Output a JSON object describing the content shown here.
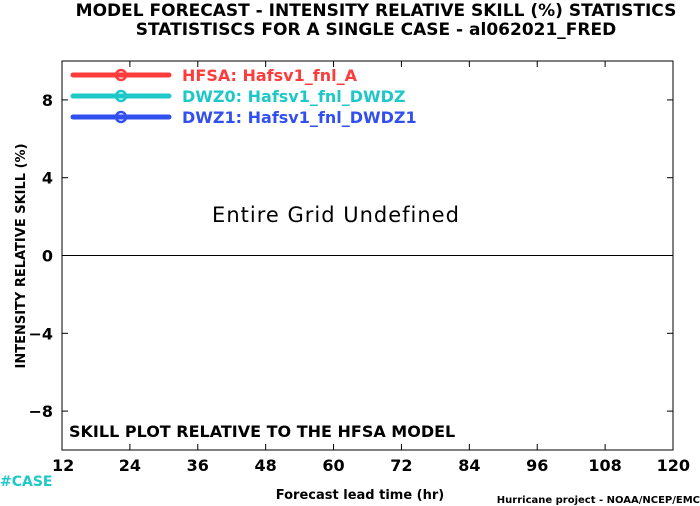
{
  "chart_data": {
    "type": "line",
    "title": "MODEL FORECAST - INTENSITY RELATIVE SKILL (%) STATISTICS",
    "subtitle": "STATISTISCS FOR A SINGLE CASE - al062021_FRED",
    "xlabel": "Forecast lead time (hr)",
    "ylabel": "INTENSITY RELATIVE SKILL (%)",
    "x_ticks": [
      "12",
      "24",
      "36",
      "48",
      "60",
      "72",
      "84",
      "96",
      "108",
      "120"
    ],
    "y_ticks": [
      "8",
      "4",
      "0",
      "-4",
      "-8"
    ],
    "xlim": [
      12,
      120
    ],
    "ylim": [
      -10,
      10
    ],
    "grid": false,
    "legend_position": "top-left",
    "series": [
      {
        "name": "HFSA: Hafsv1_fnl_A",
        "color": "#ff3c3c",
        "values": []
      },
      {
        "name": "DWZ0: Hafsv1_fnl_DWDZ",
        "color": "#1ec8c8",
        "values": []
      },
      {
        "name": "DWZ1: Hafsv1_fnl_DWDZ1",
        "color": "#3250f0",
        "values": []
      }
    ],
    "annotations": {
      "center_message": "Entire Grid Undefined",
      "bottom_message": "SKILL PLOT RELATIVE TO THE HFSA MODEL"
    }
  },
  "footer": {
    "case_tag": "#CASE",
    "case_color": "#1ec8c8",
    "credit": "Hurricane project - NOAA/NCEP/EMC"
  }
}
